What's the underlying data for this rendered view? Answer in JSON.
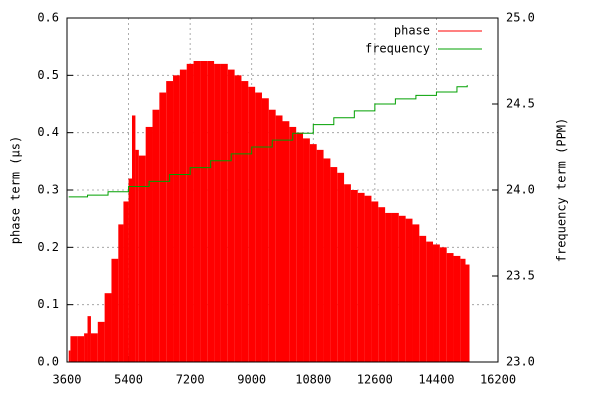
{
  "chart_data": {
    "type": "bar-step",
    "ylabel": "phase term (µs)",
    "y2label": "frequency term (PPM)",
    "xlim": [
      3600,
      16200
    ],
    "xticks": [
      3600,
      5400,
      7200,
      9000,
      10800,
      12600,
      14400,
      16200
    ],
    "ylim": [
      0,
      0.6
    ],
    "yticks": [
      {
        "value": 0,
        "label": "0.0"
      },
      0.1,
      0.2,
      0.3,
      0.4,
      0.5,
      0.6
    ],
    "y2lim": [
      23,
      25
    ],
    "y2ticks": [
      {
        "value": 23,
        "label": "23.0"
      },
      23.5,
      {
        "value": 24,
        "label": "24.0"
      },
      24.5,
      {
        "value": 25,
        "label": "25.0"
      }
    ],
    "grid": true,
    "legend": "top-right",
    "series": [
      {
        "name": "phase",
        "color": "#ff0000",
        "kind": "bar",
        "x": [
          3650,
          3700,
          3900,
          4100,
          4200,
          4300,
          4500,
          4700,
          4900,
          5100,
          5250,
          5400,
          5500,
          5600,
          5700,
          5900,
          6100,
          6300,
          6500,
          6700,
          6900,
          7100,
          7300,
          7500,
          7700,
          7900,
          8100,
          8300,
          8500,
          8700,
          8900,
          9100,
          9300,
          9500,
          9700,
          9900,
          10100,
          10300,
          10500,
          10700,
          10900,
          11100,
          11300,
          11500,
          11700,
          11900,
          12100,
          12300,
          12500,
          12700,
          12900,
          13100,
          13300,
          13500,
          13700,
          13900,
          14100,
          14300,
          14500,
          14700,
          14900,
          15100,
          15250
        ],
        "values": [
          0.02,
          0.045,
          0.045,
          0.05,
          0.08,
          0.05,
          0.07,
          0.12,
          0.18,
          0.24,
          0.28,
          0.32,
          0.43,
          0.37,
          0.36,
          0.41,
          0.44,
          0.47,
          0.49,
          0.5,
          0.51,
          0.52,
          0.525,
          0.525,
          0.525,
          0.52,
          0.52,
          0.51,
          0.5,
          0.49,
          0.48,
          0.47,
          0.46,
          0.44,
          0.43,
          0.42,
          0.41,
          0.4,
          0.39,
          0.38,
          0.37,
          0.355,
          0.34,
          0.33,
          0.31,
          0.3,
          0.295,
          0.29,
          0.28,
          0.27,
          0.26,
          0.26,
          0.255,
          0.25,
          0.24,
          0.22,
          0.21,
          0.205,
          0.2,
          0.19,
          0.185,
          0.18,
          0.17
        ]
      },
      {
        "name": "frequency",
        "color": "#00a000",
        "kind": "step",
        "axis": "y2",
        "x": [
          3650,
          4200,
          4800,
          5400,
          6000,
          6600,
          7200,
          7800,
          8400,
          9000,
          9600,
          10200,
          10800,
          11400,
          12000,
          12600,
          13200,
          13800,
          14400,
          15000,
          15300
        ],
        "values": [
          23.96,
          23.97,
          23.99,
          24.02,
          24.05,
          24.09,
          24.13,
          24.17,
          24.21,
          24.25,
          24.29,
          24.33,
          24.38,
          24.42,
          24.46,
          24.5,
          24.53,
          24.55,
          24.57,
          24.6,
          24.61
        ]
      }
    ]
  }
}
